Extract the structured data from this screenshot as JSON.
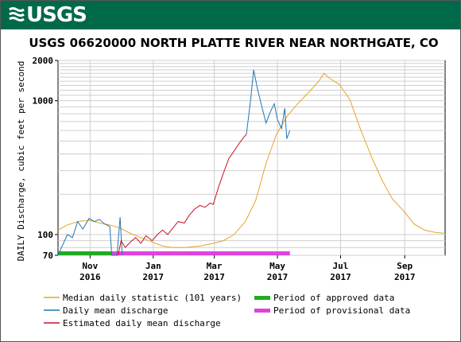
{
  "header": {
    "logo_text": "USGS",
    "title": "USGS 06620000 NORTH PLATTE RIVER NEAR NORTHGATE, CO"
  },
  "colors": {
    "banner": "#00694a",
    "median": "#e5a427",
    "daily_mean": "#1f77b4",
    "estimated": "#cc1122",
    "approved": "#22aa22",
    "provisional": "#dd44dd"
  },
  "chart_data": {
    "type": "line",
    "title": "USGS 06620000 NORTH PLATTE RIVER NEAR NORTHGATE, CO",
    "xlabel": "",
    "ylabel": "DAILY Discharge, cubic feet per second",
    "y_scale": "log",
    "ylim": [
      70,
      2000
    ],
    "xlim": [
      "2016-10-01",
      "2017-10-10"
    ],
    "grid": true,
    "y_ticks": [
      {
        "value": 70,
        "label": "70"
      },
      {
        "value": 100,
        "label": "100"
      },
      {
        "value": 1000,
        "label": "1000"
      },
      {
        "value": 2000,
        "label": "2000"
      }
    ],
    "x_ticks": [
      {
        "date": "2016-11-01",
        "label1": "Nov",
        "label2": "2016"
      },
      {
        "date": "2017-01-01",
        "label1": "Jan",
        "label2": "2017"
      },
      {
        "date": "2017-03-01",
        "label1": "Mar",
        "label2": "2017"
      },
      {
        "date": "2017-05-01",
        "label1": "May",
        "label2": "2017"
      },
      {
        "date": "2017-07-01",
        "label1": "Jul",
        "label2": "2017"
      },
      {
        "date": "2017-09-01",
        "label1": "Sep",
        "label2": "2017"
      }
    ],
    "series": [
      {
        "name": "Median daily statistic (101 years)",
        "color": "#e5a427",
        "points": [
          [
            "2016-10-01",
            108
          ],
          [
            "2016-10-10",
            118
          ],
          [
            "2016-10-20",
            125
          ],
          [
            "2016-10-31",
            128
          ],
          [
            "2016-11-10",
            122
          ],
          [
            "2016-11-20",
            118
          ],
          [
            "2016-11-30",
            112
          ],
          [
            "2016-12-10",
            102
          ],
          [
            "2016-12-20",
            95
          ],
          [
            "2016-12-31",
            88
          ],
          [
            "2017-01-10",
            82
          ],
          [
            "2017-01-20",
            80
          ],
          [
            "2017-01-31",
            80
          ],
          [
            "2017-02-15",
            82
          ],
          [
            "2017-02-28",
            86
          ],
          [
            "2017-03-10",
            90
          ],
          [
            "2017-03-20",
            100
          ],
          [
            "2017-03-31",
            125
          ],
          [
            "2017-04-10",
            180
          ],
          [
            "2017-04-20",
            340
          ],
          [
            "2017-04-30",
            560
          ],
          [
            "2017-05-10",
            760
          ],
          [
            "2017-05-20",
            940
          ],
          [
            "2017-05-31",
            1150
          ],
          [
            "2017-06-10",
            1400
          ],
          [
            "2017-06-15",
            1600
          ],
          [
            "2017-06-20",
            1480
          ],
          [
            "2017-06-30",
            1320
          ],
          [
            "2017-07-10",
            1020
          ],
          [
            "2017-07-20",
            620
          ],
          [
            "2017-07-31",
            380
          ],
          [
            "2017-08-10",
            255
          ],
          [
            "2017-08-20",
            185
          ],
          [
            "2017-08-31",
            150
          ],
          [
            "2017-09-10",
            120
          ],
          [
            "2017-09-20",
            108
          ],
          [
            "2017-09-30",
            104
          ],
          [
            "2017-10-10",
            102
          ]
        ]
      },
      {
        "name": "Daily mean discharge",
        "color": "#1f77b4",
        "points": [
          [
            "2016-10-01",
            70
          ],
          [
            "2016-10-05",
            82
          ],
          [
            "2016-10-10",
            100
          ],
          [
            "2016-10-15",
            95
          ],
          [
            "2016-10-20",
            125
          ],
          [
            "2016-10-25",
            110
          ],
          [
            "2016-10-31",
            132
          ],
          [
            "2016-11-05",
            125
          ],
          [
            "2016-11-10",
            130
          ],
          [
            "2016-11-15",
            120
          ],
          [
            "2016-11-20",
            115
          ],
          [
            "2016-11-22",
            70
          ],
          [
            "2016-11-27",
            70
          ],
          [
            "2016-11-30",
            135
          ],
          [
            "2016-12-02",
            70
          ]
        ],
        "points_spring": [
          [
            "2017-04-01",
            560
          ],
          [
            "2017-04-05",
            1000
          ],
          [
            "2017-04-08",
            1700
          ],
          [
            "2017-04-12",
            1200
          ],
          [
            "2017-04-16",
            900
          ],
          [
            "2017-04-20",
            680
          ],
          [
            "2017-04-24",
            820
          ],
          [
            "2017-04-28",
            950
          ],
          [
            "2017-05-01",
            720
          ],
          [
            "2017-05-05",
            620
          ],
          [
            "2017-05-08",
            880
          ],
          [
            "2017-05-10",
            520
          ],
          [
            "2017-05-13",
            600
          ]
        ]
      },
      {
        "name": "Estimated daily mean discharge",
        "color": "#cc1122",
        "points": [
          [
            "2016-11-28",
            70
          ],
          [
            "2016-12-01",
            90
          ],
          [
            "2016-12-05",
            80
          ],
          [
            "2016-12-10",
            88
          ],
          [
            "2016-12-15",
            95
          ],
          [
            "2016-12-20",
            86
          ],
          [
            "2016-12-25",
            98
          ],
          [
            "2016-12-31",
            90
          ],
          [
            "2017-01-05",
            100
          ],
          [
            "2017-01-10",
            108
          ],
          [
            "2017-01-15",
            100
          ],
          [
            "2017-01-20",
            112
          ],
          [
            "2017-01-25",
            125
          ],
          [
            "2017-01-31",
            122
          ],
          [
            "2017-02-05",
            140
          ],
          [
            "2017-02-10",
            155
          ],
          [
            "2017-02-15",
            165
          ],
          [
            "2017-02-20",
            160
          ],
          [
            "2017-02-25",
            172
          ],
          [
            "2017-02-28",
            168
          ],
          [
            "2017-03-05",
            225
          ],
          [
            "2017-03-10",
            290
          ],
          [
            "2017-03-15",
            370
          ],
          [
            "2017-03-20",
            420
          ],
          [
            "2017-03-25",
            480
          ],
          [
            "2017-03-30",
            540
          ],
          [
            "2017-04-01",
            560
          ]
        ]
      }
    ],
    "periods": [
      {
        "name": "Period of approved data",
        "color": "#22aa22",
        "start": "2016-10-01",
        "end": "2016-11-22"
      },
      {
        "name": "Period of provisional data",
        "color": "#dd44dd",
        "start": "2016-11-22",
        "end": "2017-05-13"
      }
    ]
  },
  "legend": [
    {
      "label": "Median daily statistic (101 years)",
      "color": "#e5a427",
      "kind": "line"
    },
    {
      "label": "Period of approved data",
      "color": "#22aa22",
      "kind": "bar"
    },
    {
      "label": "Daily mean discharge",
      "color": "#1f77b4",
      "kind": "line"
    },
    {
      "label": "Period of provisional data",
      "color": "#dd44dd",
      "kind": "bar"
    },
    {
      "label": "Estimated daily mean discharge",
      "color": "#cc1122",
      "kind": "line"
    }
  ]
}
